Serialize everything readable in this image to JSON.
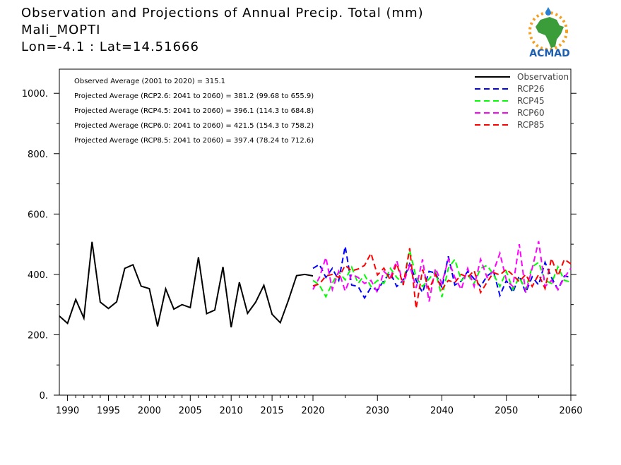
{
  "header": {
    "title": "Observation and Projections of Annual Precip. Total (mm)",
    "region": "Mali_MOPTI",
    "coords": "Lon=-4.1 : Lat=14.51666"
  },
  "logo": {
    "text": "ACMAD",
    "icon": "africa-sun-logo"
  },
  "stats": [
    "Observed Average (2001 to 2020) = 315.1",
    "Projected Average (RCP2.6: 2041 to 2060) = 381.2 (99.68 to 655.9)",
    "Projected Average (RCP4.5: 2041 to 2060) = 396.1 (114.3 to 684.8)",
    "Projected Average (RCP6.0: 2041 to 2060) = 421.5 (154.3 to 758.2)",
    "Projected Average (RCP8.5: 2041 to 2060) = 397.4 (78.24 to 712.6)"
  ],
  "chart_data": {
    "type": "line",
    "title": "Observation and Projections of Annual Precip. Total (mm)",
    "xlim": [
      1989,
      2060
    ],
    "ylim": [
      0,
      1080
    ],
    "x_ticks_left": [
      1990,
      1995,
      2000,
      2005,
      2010,
      2015,
      2020
    ],
    "x_ticks_right": [
      2030,
      2040,
      2050,
      2060
    ],
    "y_ticks": [
      0,
      200,
      400,
      600,
      800,
      1000
    ],
    "y_tick_labels": [
      "0.",
      "200.",
      "400.",
      "600.",
      "800.",
      "1000."
    ],
    "legend_position": "top-right",
    "series": [
      {
        "name": "Observation",
        "color": "#000000",
        "style": "solid",
        "x": [
          1989,
          1990,
          1991,
          1992,
          1993,
          1994,
          1995,
          1996,
          1997,
          1998,
          1999,
          2000,
          2001,
          2002,
          2003,
          2004,
          2005,
          2006,
          2007,
          2008,
          2009,
          2010,
          2011,
          2012,
          2013,
          2014,
          2015,
          2016,
          2017,
          2018,
          2019,
          2020
        ],
        "values": [
          262,
          238,
          317,
          255,
          508,
          308,
          287,
          309,
          420,
          432,
          361,
          353,
          228,
          352,
          285,
          300,
          290,
          457,
          270,
          282,
          425,
          225,
          374,
          271,
          308,
          364,
          268,
          240,
          315,
          396,
          400,
          395
        ]
      },
      {
        "name": "RCP26",
        "color": "#0000ff",
        "style": "dashed",
        "x": [
          2020,
          2021,
          2022,
          2023,
          2024,
          2025,
          2026,
          2027,
          2028,
          2029,
          2030,
          2031,
          2032,
          2033,
          2034,
          2035,
          2036,
          2037,
          2038,
          2039,
          2040,
          2041,
          2042,
          2043,
          2044,
          2045,
          2046,
          2047,
          2048,
          2049,
          2050,
          2051,
          2052,
          2053,
          2054,
          2055,
          2056,
          2057,
          2058,
          2059,
          2060
        ],
        "values": [
          420,
          433,
          390,
          420,
          380,
          493,
          365,
          360,
          322,
          357,
          348,
          380,
          405,
          360,
          380,
          435,
          380,
          340,
          410,
          405,
          356,
          460,
          365,
          378,
          410,
          385,
          360,
          395,
          410,
          330,
          380,
          340,
          395,
          340,
          392,
          365,
          440,
          390,
          350,
          395,
          390
        ]
      },
      {
        "name": "RCP45",
        "color": "#00ff00",
        "style": "dashed",
        "x": [
          2020,
          2021,
          2022,
          2023,
          2024,
          2025,
          2026,
          2027,
          2028,
          2029,
          2030,
          2031,
          2032,
          2033,
          2034,
          2035,
          2036,
          2037,
          2038,
          2039,
          2040,
          2041,
          2042,
          2043,
          2044,
          2045,
          2046,
          2047,
          2048,
          2049,
          2050,
          2051,
          2052,
          2053,
          2054,
          2055,
          2056,
          2057,
          2058,
          2059,
          2060
        ],
        "values": [
          380,
          365,
          326,
          371,
          408,
          382,
          424,
          370,
          398,
          360,
          380,
          370,
          420,
          390,
          370,
          480,
          390,
          360,
          385,
          410,
          325,
          420,
          450,
          380,
          398,
          370,
          420,
          430,
          400,
          360,
          410,
          350,
          390,
          350,
          425,
          440,
          380,
          370,
          425,
          380,
          375
        ]
      },
      {
        "name": "RCP60",
        "color": "#ff00ff",
        "style": "dashed",
        "x": [
          2020,
          2021,
          2022,
          2023,
          2024,
          2025,
          2026,
          2027,
          2028,
          2029,
          2030,
          2031,
          2032,
          2033,
          2034,
          2035,
          2036,
          2037,
          2038,
          2039,
          2040,
          2041,
          2042,
          2043,
          2044,
          2045,
          2046,
          2047,
          2048,
          2049,
          2050,
          2051,
          2052,
          2053,
          2054,
          2055,
          2056,
          2057,
          2058,
          2059,
          2060
        ],
        "values": [
          350,
          390,
          456,
          350,
          410,
          345,
          400,
          390,
          370,
          380,
          340,
          410,
          390,
          445,
          370,
          430,
          355,
          450,
          310,
          420,
          370,
          450,
          390,
          350,
          420,
          360,
          450,
          390,
          410,
          470,
          380,
          360,
          500,
          340,
          420,
          510,
          360,
          380,
          350,
          390,
          420
        ]
      },
      {
        "name": "RCP85",
        "color": "#ff0000",
        "style": "dashed",
        "x": [
          2020,
          2021,
          2022,
          2023,
          2024,
          2025,
          2026,
          2027,
          2028,
          2029,
          2030,
          2031,
          2032,
          2033,
          2034,
          2035,
          2036,
          2037,
          2038,
          2039,
          2040,
          2041,
          2042,
          2043,
          2044,
          2045,
          2046,
          2047,
          2048,
          2049,
          2050,
          2051,
          2052,
          2053,
          2054,
          2055,
          2056,
          2057,
          2058,
          2059,
          2060
        ],
        "values": [
          362,
          368,
          395,
          400,
          390,
          430,
          412,
          418,
          430,
          470,
          398,
          421,
          381,
          436,
          365,
          487,
          287,
          416,
          350,
          400,
          350,
          380,
          373,
          400,
          390,
          413,
          340,
          374,
          406,
          398,
          417,
          398,
          376,
          400,
          360,
          400,
          353,
          453,
          395,
          450,
          435
        ]
      }
    ]
  }
}
